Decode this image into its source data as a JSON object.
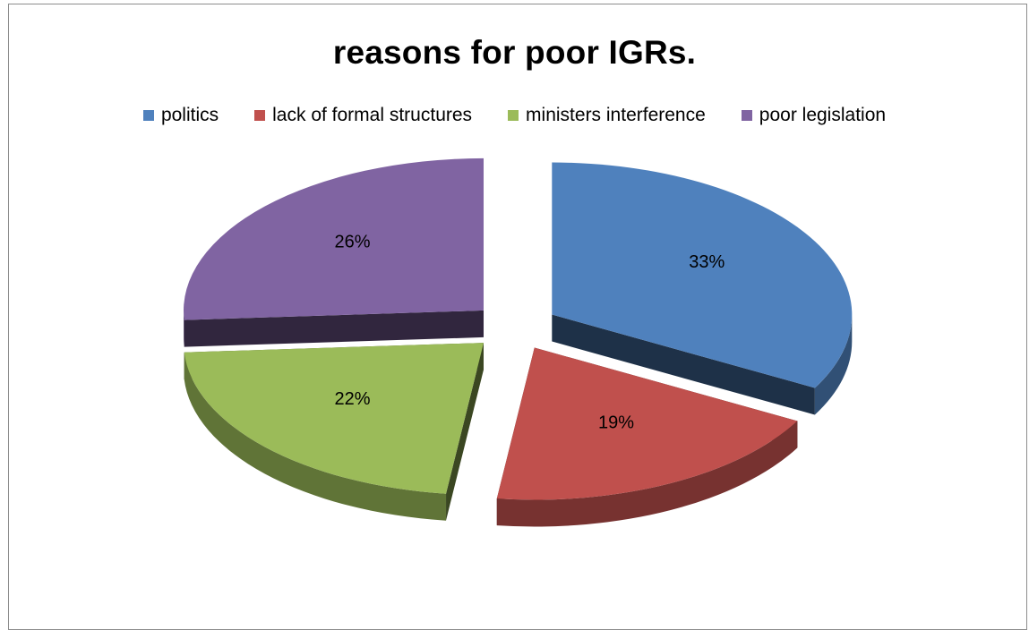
{
  "chart_data": {
    "type": "pie",
    "title": "reasons for poor IGRs.",
    "legend_position": "top",
    "categories": [
      "politics",
      "lack of formal structures",
      "ministers interference",
      "poor legislation"
    ],
    "values": [
      33,
      19,
      22,
      26
    ],
    "labels": [
      "33%",
      "19%",
      "22%",
      "26%"
    ],
    "colors": [
      "#4f81bd",
      "#c0504d",
      "#9bbb59",
      "#8064a2"
    ],
    "exploded": true,
    "style": "3d"
  }
}
